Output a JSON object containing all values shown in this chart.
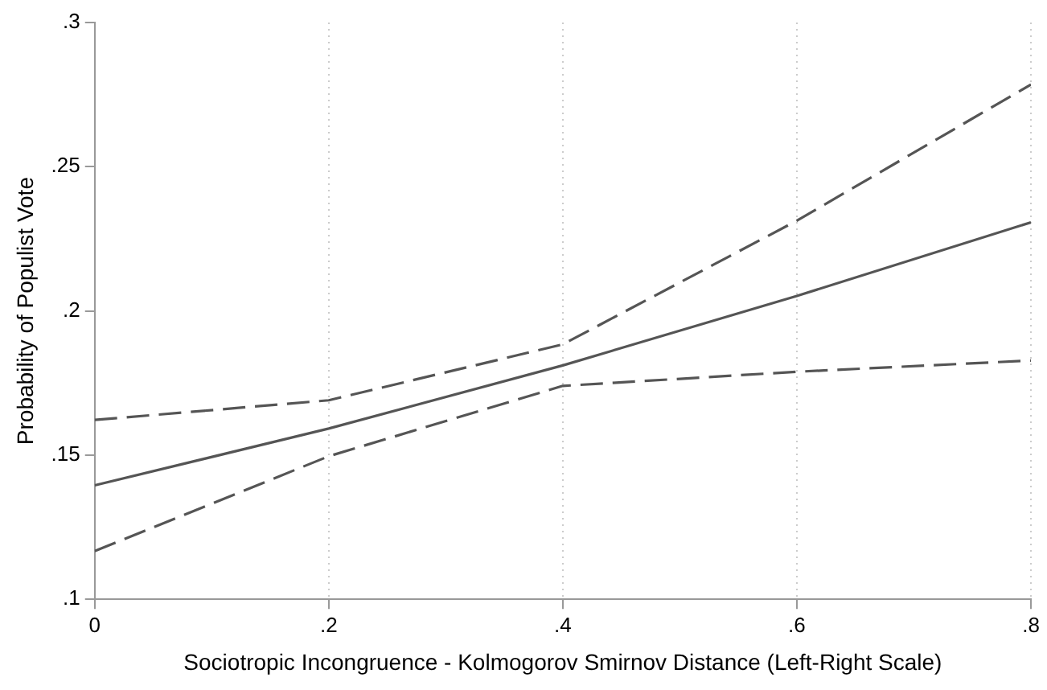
{
  "chart_data": {
    "type": "line",
    "xlabel": "Sociotropic Incongruence - Kolmogorov Smirnov Distance (Left-Right Scale)",
    "ylabel": "Probability of Populist Vote",
    "x": [
      0,
      0.2,
      0.4,
      0.6,
      0.8
    ],
    "series": [
      {
        "color": "#555555",
        "line_style": "solid",
        "values": [
          0.1395,
          0.1592,
          0.1811,
          0.2052,
          0.2307
        ]
      },
      {
        "color": "#555555",
        "line_style": "dashed",
        "values": [
          0.1622,
          0.169,
          0.1884,
          0.2313,
          0.2785
        ]
      },
      {
        "color": "#555555",
        "line_style": "dashed",
        "values": [
          0.1167,
          0.1496,
          0.174,
          0.1789,
          0.1828
        ]
      }
    ],
    "xlim": [
      0,
      0.8
    ],
    "xticks": [
      {
        "value": 0,
        "label": "0"
      },
      {
        "value": 0.2,
        "label": ".2"
      },
      {
        "value": 0.4,
        "label": ".4"
      },
      {
        "value": 0.6,
        "label": ".6"
      },
      {
        "value": 0.8,
        "label": ".8"
      }
    ],
    "ylim": [
      0.1,
      0.3
    ],
    "yticks": [
      {
        "value": 0.1,
        "label": ".1"
      },
      {
        "value": 0.15,
        "label": ".15"
      },
      {
        "value": 0.2,
        "label": ".2"
      },
      {
        "value": 0.25,
        "label": ".25"
      },
      {
        "value": 0.3,
        "label": ".3"
      }
    ],
    "grid": "x",
    "legend": false,
    "marker": "none"
  }
}
